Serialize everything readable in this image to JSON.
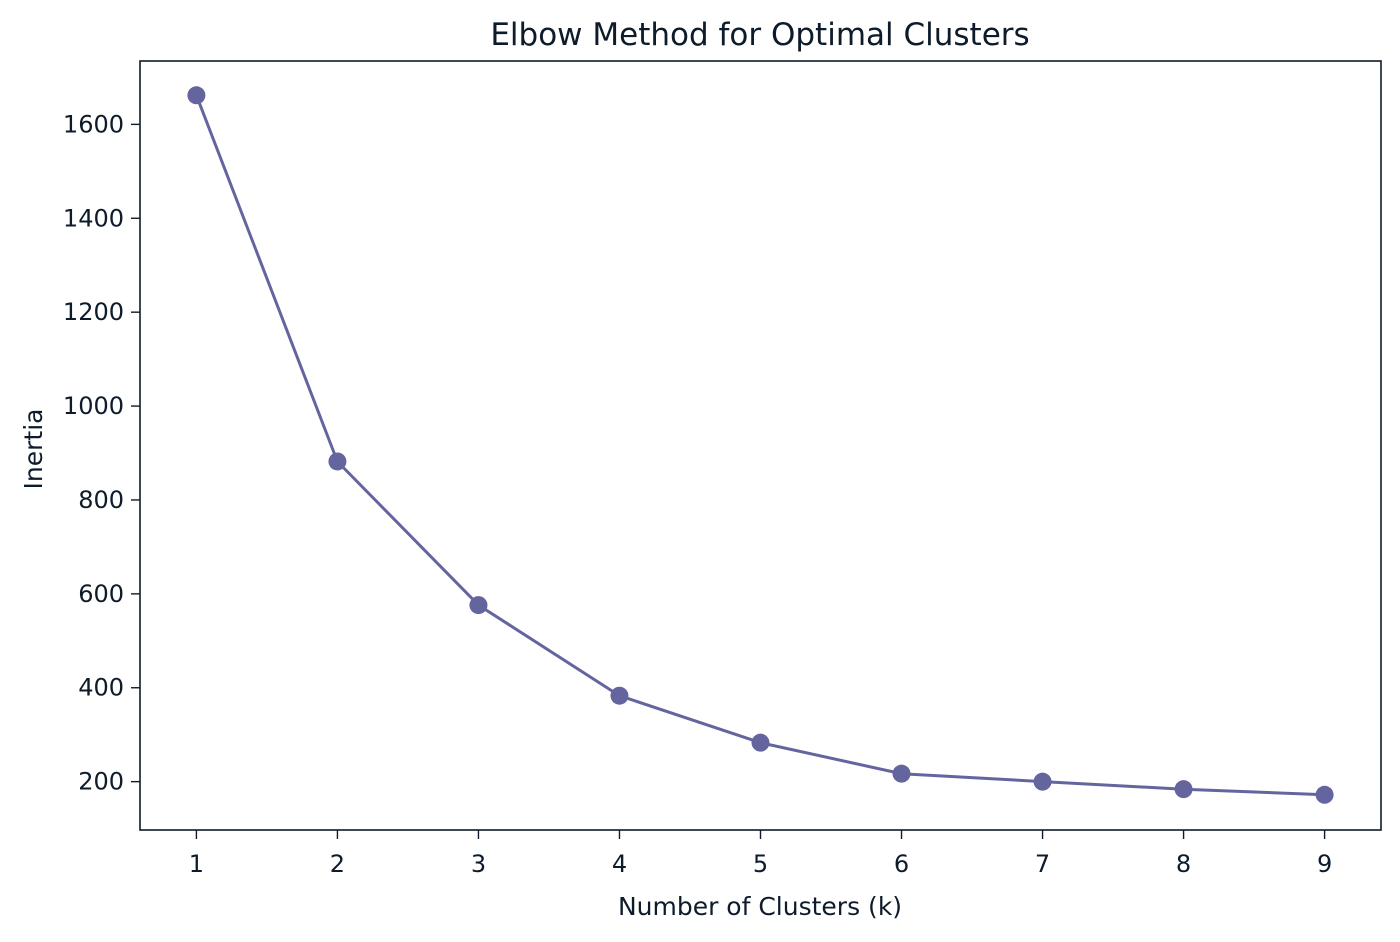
{
  "chart_data": {
    "type": "line",
    "title": "Elbow Method for Optimal Clusters",
    "xlabel": "Number of Clusters (k)",
    "ylabel": "Inertia",
    "x": [
      1,
      2,
      3,
      4,
      5,
      6,
      7,
      8,
      9
    ],
    "series": [
      {
        "values": [
          1662,
          882,
          576,
          383,
          283,
          217,
          200,
          184,
          172
        ]
      }
    ],
    "xticks": [
      "1",
      "2",
      "3",
      "4",
      "5",
      "6",
      "7",
      "8",
      "9"
    ],
    "yticks": [
      200,
      400,
      600,
      800,
      1000,
      1200,
      1400,
      1600
    ],
    "xlim": [
      0.6,
      9.4
    ],
    "ylim": [
      97,
      1735
    ],
    "grid": false,
    "legend": "none",
    "colors": {
      "line": "#64659f",
      "axis": "#0d1b2a"
    }
  }
}
